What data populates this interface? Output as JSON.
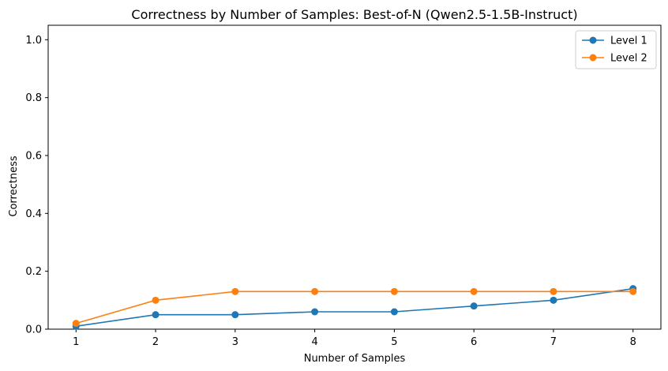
{
  "chart_data": {
    "type": "line",
    "title": "Correctness by Number of Samples: Best-of-N (Qwen2.5-1.5B-Instruct)",
    "xlabel": "Number of Samples",
    "ylabel": "Correctness",
    "x": [
      1,
      2,
      3,
      4,
      5,
      6,
      7,
      8
    ],
    "xticks": [
      "1",
      "2",
      "3",
      "4",
      "5",
      "6",
      "7",
      "8"
    ],
    "yticks": [
      "0.0",
      "0.2",
      "0.4",
      "0.6",
      "0.8",
      "1.0"
    ],
    "xlim": [
      0.65,
      8.35
    ],
    "ylim": [
      0,
      1.05
    ],
    "grid": false,
    "legend_position": "top-right",
    "series": [
      {
        "name": "Level 1",
        "color": "#1f77b4",
        "values": [
          0.01,
          0.05,
          0.05,
          0.06,
          0.06,
          0.08,
          0.1,
          0.14
        ]
      },
      {
        "name": "Level 2",
        "color": "#ff7f0e",
        "values": [
          0.02,
          0.1,
          0.13,
          0.13,
          0.13,
          0.13,
          0.13,
          0.13
        ]
      }
    ]
  }
}
